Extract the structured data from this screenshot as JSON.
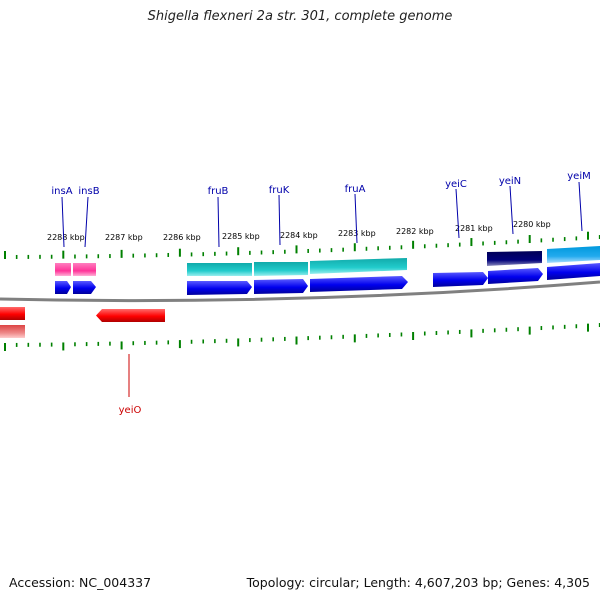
{
  "title": "Shigella flexneri 2a str. 301, complete genome",
  "footer": {
    "accession": "Accession: NC_004337",
    "summary": "Topology: circular; Length: 4,607,203 bp; Genes: 4,305"
  },
  "ruler": {
    "labels": [
      "2288 kbp",
      "2287 kbp",
      "2286 kbp",
      "2285 kbp",
      "2284 kbp",
      "2283 kbp",
      "2282 kbp",
      "2281 kbp",
      "2280 kbp"
    ]
  },
  "colors": {
    "backbone": "#808080",
    "tick": "#008000",
    "forward_gene": "#0000ee",
    "forward_label": "#0000aa",
    "reverse_gene": "#ff0000",
    "reverse_label": "#cc0000",
    "transposase": "#ff3399",
    "cyan": "#22cccc",
    "navy": "#00007a",
    "sky": "#22aaee"
  },
  "gene_labels": {
    "insA": "insA",
    "insB": "insB",
    "fruB": "fruB",
    "fruK": "fruK",
    "fruA": "fruA",
    "yeiC": "yeiC",
    "yeiN": "yeiN",
    "yeiM": "yeiM",
    "yeiO": "yeiO"
  }
}
